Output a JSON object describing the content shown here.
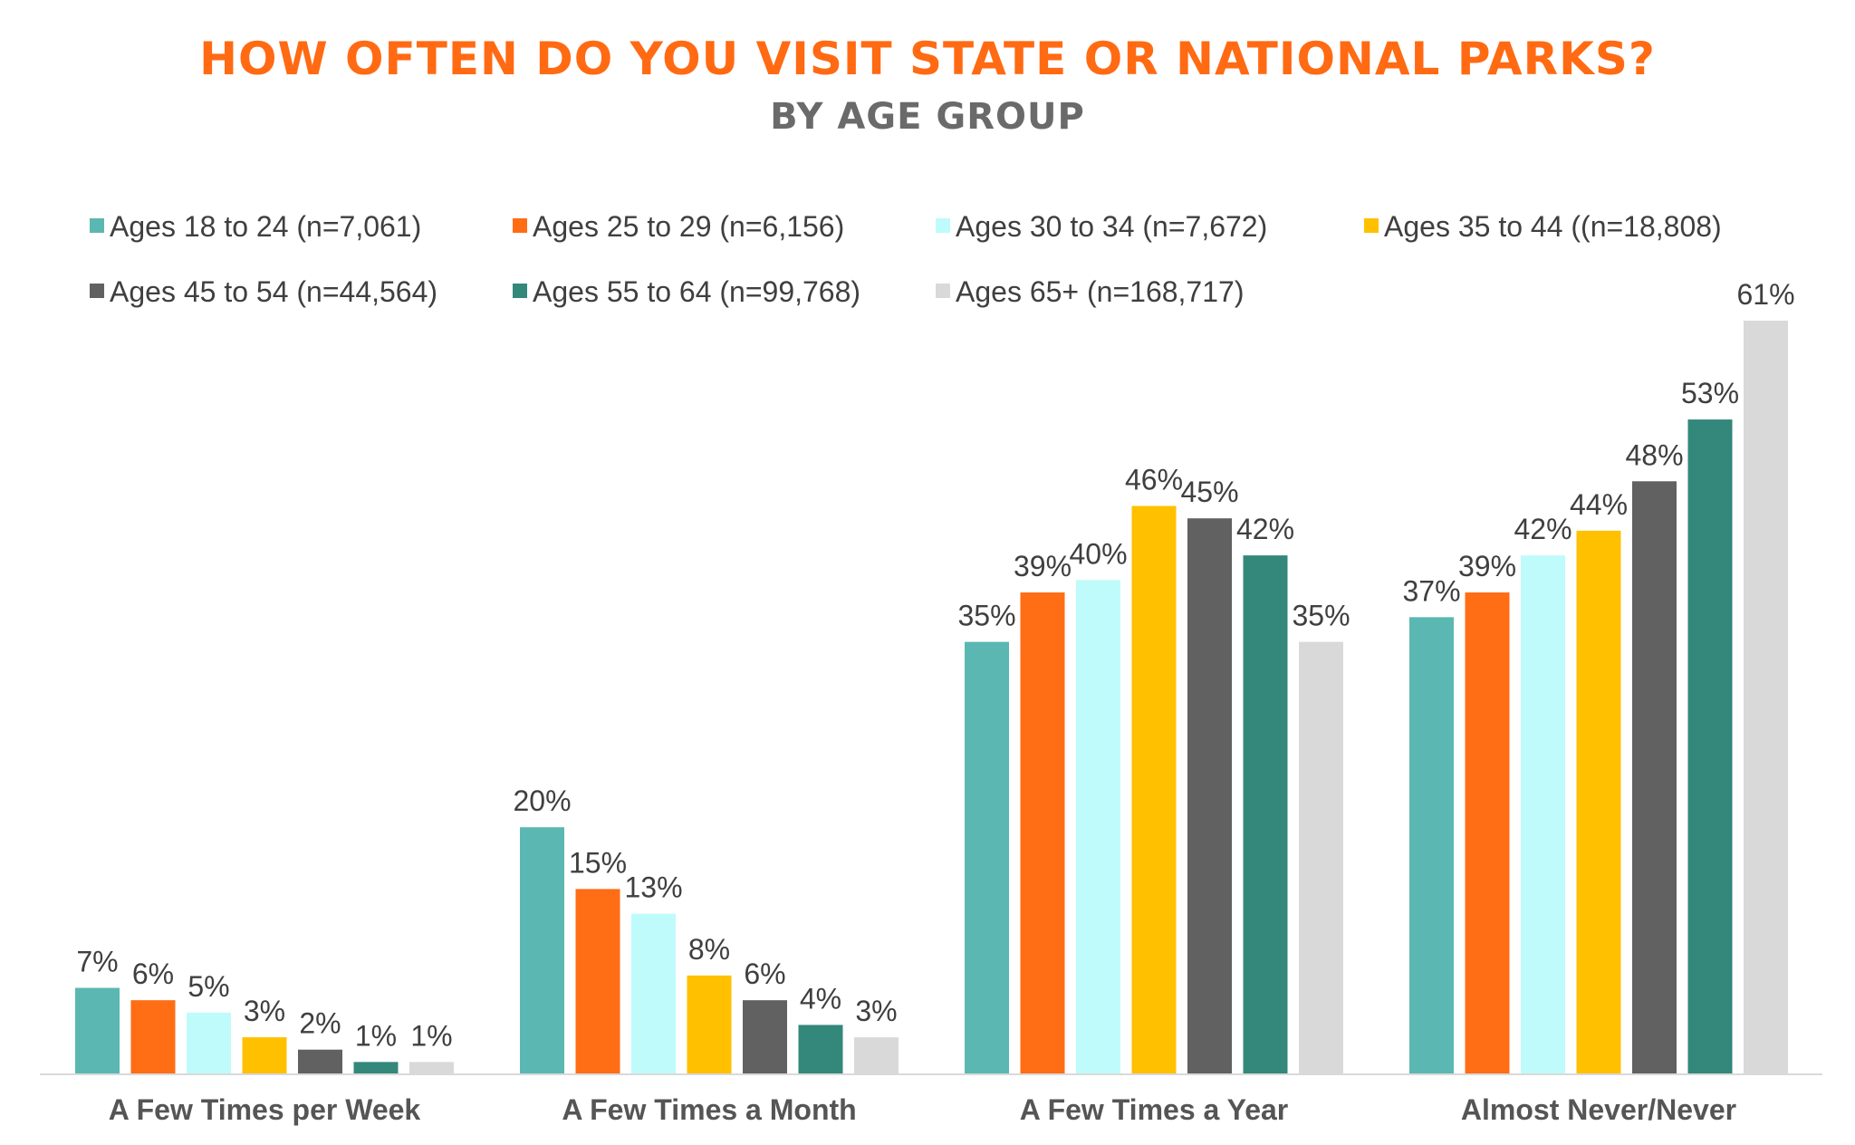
{
  "chart_data": {
    "type": "bar",
    "title": "HOW OFTEN DO YOU VISIT STATE OR NATIONAL PARKS?",
    "subtitle": "BY AGE GROUP",
    "xlabel": "",
    "ylabel": "",
    "ylim": [
      0,
      65
    ],
    "grid": false,
    "legend_position": "top",
    "value_suffix": "%",
    "categories": [
      "A Few Times per Week",
      "A Few Times a Month",
      "A Few Times a Year",
      "Almost Never/Never"
    ],
    "series": [
      {
        "name": "Ages 18 to 24 (n=7,061)",
        "color": "#5bb7b1",
        "values": [
          7,
          20,
          35,
          37
        ]
      },
      {
        "name": "Ages 25 to 29 (n=6,156)",
        "color": "#ff6d14",
        "values": [
          6,
          15,
          39,
          39
        ]
      },
      {
        "name": "Ages 30 to 34 (n=7,672)",
        "color": "#bffbfb",
        "values": [
          5,
          13,
          40,
          42
        ]
      },
      {
        "name": "Ages 35 to 44 ((n=18,808)",
        "color": "#ffc000",
        "values": [
          3,
          8,
          46,
          44
        ]
      },
      {
        "name": "Ages 45 to 54 (n=44,564)",
        "color": "#616161",
        "values": [
          2,
          6,
          45,
          48
        ]
      },
      {
        "name": "Ages 55 to 64 (n=99,768)",
        "color": "#33877b",
        "values": [
          1,
          4,
          42,
          53
        ]
      },
      {
        "name": "Ages 65+ (n=168,717)",
        "color": "#d9d9d9",
        "values": [
          1,
          3,
          35,
          61
        ]
      }
    ]
  }
}
